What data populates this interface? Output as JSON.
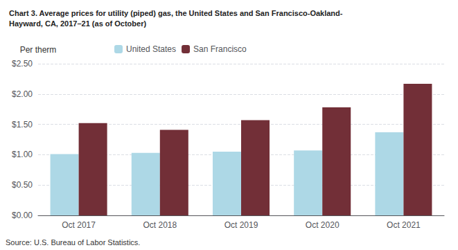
{
  "chart_data": {
    "type": "bar",
    "title": "Chart 3. Average prices for utility (piped) gas, the United States and San Francisco-Oakland-\nHayward, CA, 2017–21 (as of October)",
    "ylabel": "Per therm",
    "annotations": [
      "Source: U.S. Bureau of Labor Statistics."
    ],
    "categories": [
      "Oct 2017",
      "Oct 2018",
      "Oct 2019",
      "Oct 2020",
      "Oct 2021"
    ],
    "series": [
      {
        "name": "United States",
        "color": "#add8e6",
        "values": [
          1.01,
          1.03,
          1.05,
          1.07,
          1.37
        ]
      },
      {
        "name": "San Francisco",
        "color": "#722F37",
        "values": [
          1.52,
          1.41,
          1.57,
          1.78,
          2.17
        ]
      }
    ],
    "ylim": [
      0,
      2.5
    ],
    "yticks": [
      {
        "value": 0,
        "label": "$0.00"
      },
      {
        "value": 0.5,
        "label": "$0.50"
      },
      {
        "value": 1,
        "label": "$1.00"
      },
      {
        "value": 1.5,
        "label": "$1.50"
      },
      {
        "value": 2,
        "label": "$2.00"
      },
      {
        "value": 2.5,
        "label": "$2.50"
      }
    ],
    "grid": true,
    "legend": "top"
  }
}
